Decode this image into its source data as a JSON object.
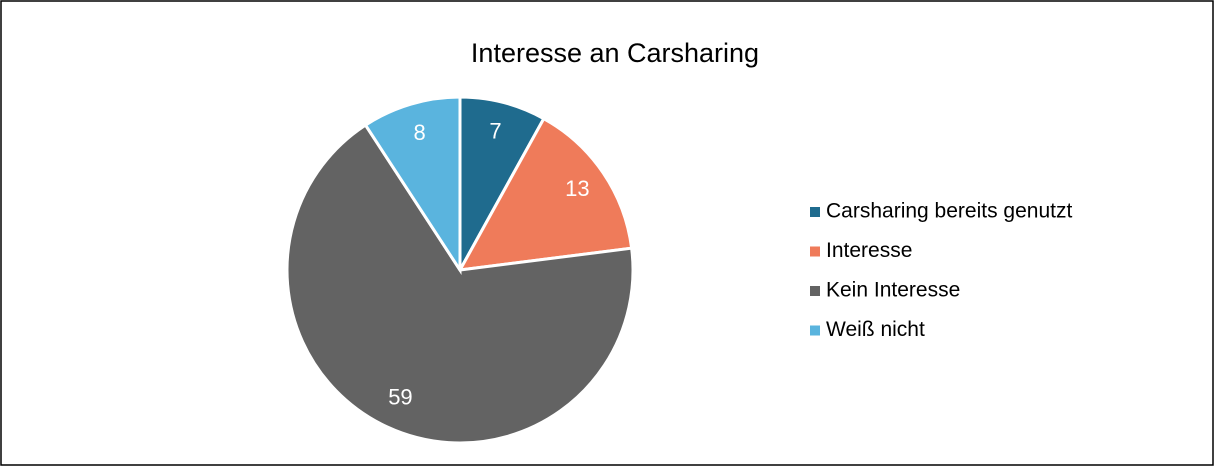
{
  "chart_data": {
    "type": "pie",
    "title": "Interesse an Carsharing",
    "categories": [
      "Carsharing bereits genutzt",
      "Interesse",
      "Kein Interesse",
      "Weiß nicht"
    ],
    "values": [
      7,
      13,
      59,
      8
    ],
    "colors": [
      "#1f6b8e",
      "#ef7b5a",
      "#636363",
      "#5ab4de"
    ],
    "legend": "right"
  }
}
